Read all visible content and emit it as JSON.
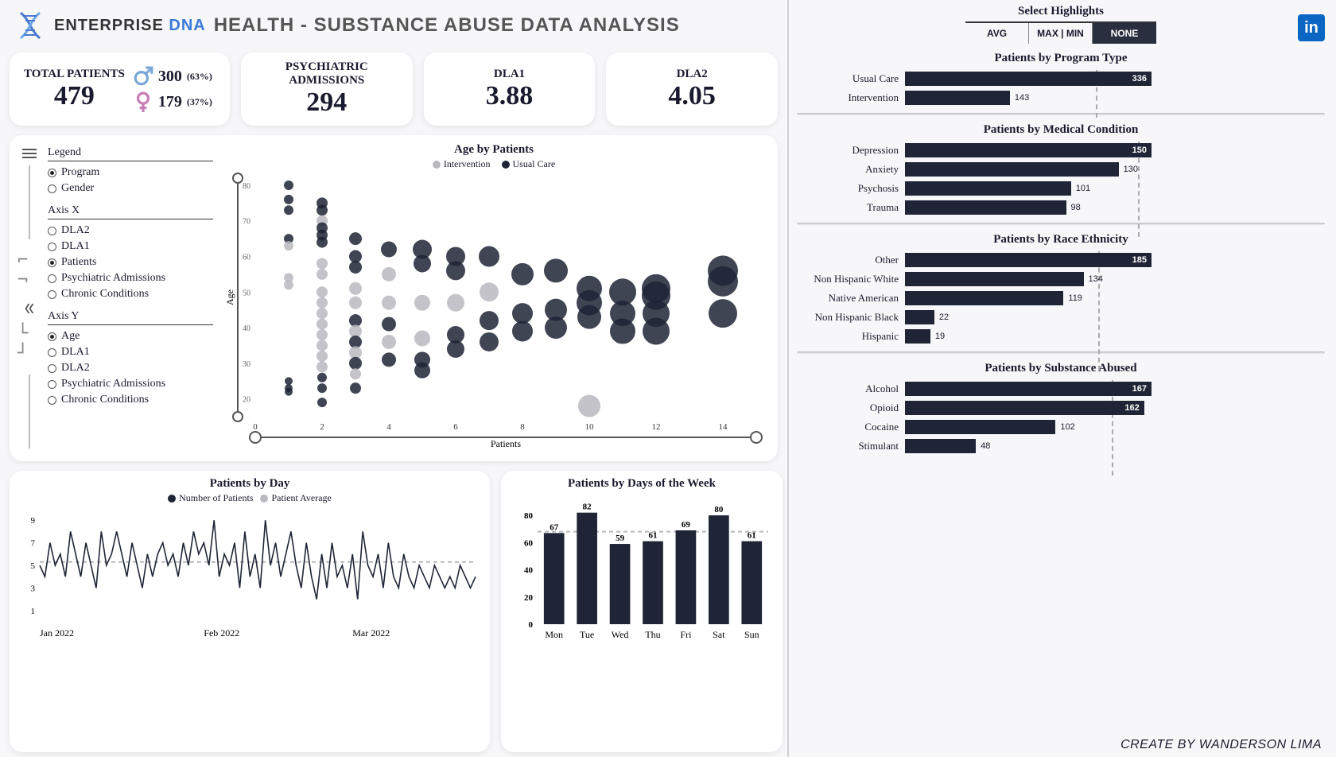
{
  "colors": {
    "dark": "#1f2536",
    "grey": "#b8b8bf",
    "card_bg": "#ffffff",
    "page_bg": "#f7f7f9",
    "male": "#7aa8d8",
    "female": "#c77fb5",
    "linkedin": "#0a66c2",
    "grid": "#d8d8de"
  },
  "header": {
    "brand_a": "ENTERPRISE",
    "brand_b": "DNA",
    "title": "HEALTH - SUBSTANCE ABUSE DATA ANALYSIS"
  },
  "kpi": {
    "total_label": "TOTAL PATIENTS",
    "total_value": "479",
    "male_value": "300",
    "male_pct": "(63%)",
    "female_value": "179",
    "female_pct": "(37%)",
    "psych_label": "PSYCHIATRIC ADMISSIONS",
    "psych_value": "294",
    "dla1_label": "DLA1",
    "dla1_value": "3.88",
    "dla2_label": "DLA2",
    "dla2_value": "4.05"
  },
  "scatter": {
    "title": "Age by Patients",
    "legend_a": "Intervention",
    "legend_b": "Usual Care",
    "xlabel": "Patients",
    "ylabel": "Age",
    "xlim": [
      0,
      15
    ],
    "ylim": [
      15,
      82
    ],
    "xticks": [
      0,
      2,
      4,
      6,
      8,
      10,
      12,
      14
    ],
    "yticks": [
      20,
      30,
      40,
      50,
      60,
      70,
      80
    ],
    "points": [
      {
        "x": 1,
        "y": 80,
        "r": 6,
        "s": "d"
      },
      {
        "x": 1,
        "y": 76,
        "r": 6,
        "s": "d"
      },
      {
        "x": 1,
        "y": 73,
        "r": 6,
        "s": "d"
      },
      {
        "x": 1,
        "y": 65,
        "r": 6,
        "s": "d"
      },
      {
        "x": 1,
        "y": 63,
        "r": 6,
        "s": "g"
      },
      {
        "x": 1,
        "y": 54,
        "r": 6,
        "s": "g"
      },
      {
        "x": 1,
        "y": 52,
        "r": 6,
        "s": "g"
      },
      {
        "x": 1,
        "y": 25,
        "r": 5,
        "s": "d"
      },
      {
        "x": 1,
        "y": 23,
        "r": 5,
        "s": "d"
      },
      {
        "x": 1,
        "y": 22,
        "r": 5,
        "s": "d"
      },
      {
        "x": 2,
        "y": 75,
        "r": 7,
        "s": "d"
      },
      {
        "x": 2,
        "y": 73,
        "r": 7,
        "s": "d"
      },
      {
        "x": 2,
        "y": 70,
        "r": 7,
        "s": "g"
      },
      {
        "x": 2,
        "y": 68,
        "r": 7,
        "s": "d"
      },
      {
        "x": 2,
        "y": 66,
        "r": 7,
        "s": "d"
      },
      {
        "x": 2,
        "y": 64,
        "r": 7,
        "s": "d"
      },
      {
        "x": 2,
        "y": 58,
        "r": 7,
        "s": "g"
      },
      {
        "x": 2,
        "y": 55,
        "r": 7,
        "s": "g"
      },
      {
        "x": 2,
        "y": 50,
        "r": 7,
        "s": "g"
      },
      {
        "x": 2,
        "y": 47,
        "r": 7,
        "s": "g"
      },
      {
        "x": 2,
        "y": 44,
        "r": 7,
        "s": "g"
      },
      {
        "x": 2,
        "y": 41,
        "r": 7,
        "s": "g"
      },
      {
        "x": 2,
        "y": 38,
        "r": 7,
        "s": "g"
      },
      {
        "x": 2,
        "y": 35,
        "r": 7,
        "s": "g"
      },
      {
        "x": 2,
        "y": 32,
        "r": 7,
        "s": "g"
      },
      {
        "x": 2,
        "y": 29,
        "r": 7,
        "s": "g"
      },
      {
        "x": 2,
        "y": 26,
        "r": 6,
        "s": "d"
      },
      {
        "x": 2,
        "y": 23,
        "r": 6,
        "s": "d"
      },
      {
        "x": 2,
        "y": 19,
        "r": 6,
        "s": "d"
      },
      {
        "x": 3,
        "y": 65,
        "r": 8,
        "s": "d"
      },
      {
        "x": 3,
        "y": 60,
        "r": 8,
        "s": "d"
      },
      {
        "x": 3,
        "y": 57,
        "r": 8,
        "s": "d"
      },
      {
        "x": 3,
        "y": 51,
        "r": 8,
        "s": "g"
      },
      {
        "x": 3,
        "y": 47,
        "r": 8,
        "s": "g"
      },
      {
        "x": 3,
        "y": 42,
        "r": 8,
        "s": "d"
      },
      {
        "x": 3,
        "y": 39,
        "r": 8,
        "s": "g"
      },
      {
        "x": 3,
        "y": 36,
        "r": 8,
        "s": "d"
      },
      {
        "x": 3,
        "y": 33,
        "r": 8,
        "s": "g"
      },
      {
        "x": 3,
        "y": 30,
        "r": 8,
        "s": "d"
      },
      {
        "x": 3,
        "y": 27,
        "r": 7,
        "s": "g"
      },
      {
        "x": 3,
        "y": 23,
        "r": 7,
        "s": "d"
      },
      {
        "x": 4,
        "y": 62,
        "r": 10,
        "s": "d"
      },
      {
        "x": 4,
        "y": 55,
        "r": 9,
        "s": "g"
      },
      {
        "x": 4,
        "y": 47,
        "r": 9,
        "s": "g"
      },
      {
        "x": 4,
        "y": 41,
        "r": 9,
        "s": "d"
      },
      {
        "x": 4,
        "y": 36,
        "r": 9,
        "s": "g"
      },
      {
        "x": 4,
        "y": 31,
        "r": 9,
        "s": "d"
      },
      {
        "x": 5,
        "y": 62,
        "r": 12,
        "s": "d"
      },
      {
        "x": 5,
        "y": 58,
        "r": 11,
        "s": "d"
      },
      {
        "x": 5,
        "y": 47,
        "r": 10,
        "s": "g"
      },
      {
        "x": 5,
        "y": 37,
        "r": 10,
        "s": "g"
      },
      {
        "x": 5,
        "y": 31,
        "r": 10,
        "s": "d"
      },
      {
        "x": 5,
        "y": 28,
        "r": 10,
        "s": "d"
      },
      {
        "x": 6,
        "y": 60,
        "r": 12,
        "s": "d"
      },
      {
        "x": 6,
        "y": 56,
        "r": 12,
        "s": "d"
      },
      {
        "x": 6,
        "y": 47,
        "r": 11,
        "s": "g"
      },
      {
        "x": 6,
        "y": 38,
        "r": 11,
        "s": "d"
      },
      {
        "x": 6,
        "y": 34,
        "r": 11,
        "s": "d"
      },
      {
        "x": 7,
        "y": 60,
        "r": 13,
        "s": "d"
      },
      {
        "x": 7,
        "y": 50,
        "r": 12,
        "s": "g"
      },
      {
        "x": 7,
        "y": 42,
        "r": 12,
        "s": "d"
      },
      {
        "x": 7,
        "y": 36,
        "r": 12,
        "s": "d"
      },
      {
        "x": 8,
        "y": 55,
        "r": 14,
        "s": "d"
      },
      {
        "x": 8,
        "y": 44,
        "r": 13,
        "s": "d"
      },
      {
        "x": 8,
        "y": 39,
        "r": 13,
        "s": "d"
      },
      {
        "x": 9,
        "y": 56,
        "r": 15,
        "s": "d"
      },
      {
        "x": 9,
        "y": 45,
        "r": 14,
        "s": "d"
      },
      {
        "x": 9,
        "y": 40,
        "r": 14,
        "s": "d"
      },
      {
        "x": 10,
        "y": 51,
        "r": 16,
        "s": "d"
      },
      {
        "x": 10,
        "y": 47,
        "r": 16,
        "s": "d"
      },
      {
        "x": 10,
        "y": 43,
        "r": 15,
        "s": "d"
      },
      {
        "x": 10,
        "y": 18,
        "r": 14,
        "s": "g"
      },
      {
        "x": 11,
        "y": 50,
        "r": 17,
        "s": "d"
      },
      {
        "x": 11,
        "y": 44,
        "r": 16,
        "s": "d"
      },
      {
        "x": 11,
        "y": 39,
        "r": 16,
        "s": "d"
      },
      {
        "x": 12,
        "y": 51,
        "r": 18,
        "s": "d"
      },
      {
        "x": 12,
        "y": 49,
        "r": 18,
        "s": "d"
      },
      {
        "x": 12,
        "y": 44,
        "r": 17,
        "s": "d"
      },
      {
        "x": 12,
        "y": 39,
        "r": 17,
        "s": "d"
      },
      {
        "x": 14,
        "y": 56,
        "r": 19,
        "s": "d"
      },
      {
        "x": 14,
        "y": 53,
        "r": 19,
        "s": "d"
      },
      {
        "x": 14,
        "y": 44,
        "r": 18,
        "s": "d"
      }
    ],
    "controls": {
      "legend_title": "Legend",
      "legend_opts": [
        {
          "label": "Program",
          "sel": true
        },
        {
          "label": "Gender",
          "sel": false
        }
      ],
      "axisx_title": "Axis X",
      "axisx_opts": [
        {
          "label": "DLA2",
          "sel": false
        },
        {
          "label": "DLA1",
          "sel": false
        },
        {
          "label": "Patients",
          "sel": true
        },
        {
          "label": "Psychiatric Admissions",
          "sel": false
        },
        {
          "label": "Chronic Conditions",
          "sel": false
        }
      ],
      "axisy_title": "Axis Y",
      "axisy_opts": [
        {
          "label": "Age",
          "sel": true
        },
        {
          "label": "DLA1",
          "sel": false
        },
        {
          "label": "DLA2",
          "sel": false
        },
        {
          "label": "Psychiatric Admissions",
          "sel": false
        },
        {
          "label": "Chronic Conditions",
          "sel": false
        }
      ]
    }
  },
  "line": {
    "title": "Patients by Day",
    "legend_a": "Number of Patients",
    "legend_b": "Patient Average",
    "yticks": [
      1,
      3,
      5,
      7,
      9
    ],
    "xticks": [
      "Jan 2022",
      "Feb 2022",
      "Mar 2022"
    ],
    "avg": 5.3,
    "values": [
      5,
      4,
      7,
      5,
      6,
      4,
      8,
      6,
      4,
      7,
      5,
      3,
      8,
      5,
      6,
      8,
      6,
      4,
      7,
      5,
      3,
      6,
      4,
      6,
      7,
      5,
      6,
      4,
      7,
      5,
      8,
      6,
      7,
      5,
      9,
      4,
      6,
      5,
      7,
      3,
      8,
      4,
      6,
      3,
      9,
      5,
      7,
      4,
      6,
      8,
      5,
      3,
      7,
      4,
      2,
      6,
      3,
      7,
      4,
      5,
      3,
      6,
      2,
      8,
      5,
      4,
      6,
      3,
      7,
      4,
      3,
      6,
      4,
      3,
      5,
      4,
      3,
      5,
      4,
      3,
      4,
      3,
      5,
      4,
      3,
      4
    ]
  },
  "dow": {
    "title": "Patients by Days of the Week",
    "ymax": 90,
    "yticks": [
      0,
      20,
      40,
      60,
      80
    ],
    "ref": 68,
    "bars": [
      {
        "label": "Mon",
        "v": 67
      },
      {
        "label": "Tue",
        "v": 82
      },
      {
        "label": "Wed",
        "v": 59
      },
      {
        "label": "Thu",
        "v": 61
      },
      {
        "label": "Fri",
        "v": 69
      },
      {
        "label": "Sat",
        "v": 80
      },
      {
        "label": "Sun",
        "v": 61
      }
    ]
  },
  "highlights": {
    "title": "Select Highlights",
    "tabs": [
      {
        "label": "AVG",
        "active": false
      },
      {
        "label": "MAX | MIN",
        "active": false
      },
      {
        "label": "NONE",
        "active": true
      }
    ]
  },
  "sections": [
    {
      "title": "Patients by Program Type",
      "max": 336,
      "ref": 260,
      "rows": [
        {
          "label": "Usual Care",
          "v": 336,
          "in": true
        },
        {
          "label": "Intervention",
          "v": 143,
          "in": false
        }
      ]
    },
    {
      "title": "Patients by Medical Condition",
      "max": 150,
      "ref": 142,
      "rows": [
        {
          "label": "Depression",
          "v": 150,
          "in": true
        },
        {
          "label": "Anxiety",
          "v": 130,
          "in": false
        },
        {
          "label": "Psychosis",
          "v": 101,
          "in": false
        },
        {
          "label": "Trauma",
          "v": 98,
          "in": false
        }
      ]
    },
    {
      "title": "Patients by Race Ethnicity",
      "max": 185,
      "ref": 145,
      "rows": [
        {
          "label": "Other",
          "v": 185,
          "in": true
        },
        {
          "label": "Non Hispanic White",
          "v": 134,
          "in": false
        },
        {
          "label": "Native American",
          "v": 119,
          "in": false
        },
        {
          "label": "Non Hispanic Black",
          "v": 22,
          "in": false
        },
        {
          "label": "Hispanic",
          "v": 19,
          "in": false
        }
      ]
    },
    {
      "title": "Patients by Substance Abused",
      "max": 167,
      "ref": 140,
      "rows": [
        {
          "label": "Alcohol",
          "v": 167,
          "in": true
        },
        {
          "label": "Opioid",
          "v": 162,
          "in": true
        },
        {
          "label": "Cocaine",
          "v": 102,
          "in": false
        },
        {
          "label": "Stimulant",
          "v": 48,
          "in": false
        }
      ]
    }
  ],
  "footer": "CREATE BY WANDERSON LIMA"
}
